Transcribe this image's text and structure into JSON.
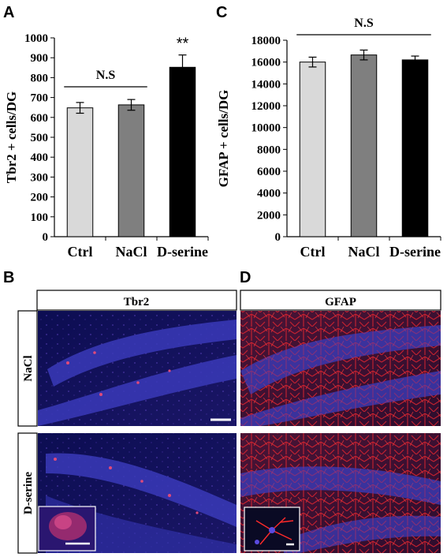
{
  "panels": {
    "a": {
      "letter": "A"
    },
    "b": {
      "letter": "B",
      "header": "Tbr2",
      "rows": [
        "NaCl",
        "D-serine"
      ]
    },
    "c": {
      "letter": "C"
    },
    "d": {
      "letter": "D",
      "header": "GFAP"
    }
  },
  "chart_data": [
    {
      "type": "bar",
      "panel": "A",
      "categories": [
        "Ctrl",
        "NaCl",
        "D-serine"
      ],
      "values": [
        648,
        663,
        852
      ],
      "errors": [
        27,
        27,
        62
      ],
      "bar_colors": [
        "#d9d9d9",
        "#7f7f7f",
        "#000000"
      ],
      "ylabel": "Tbr2 + cells/DG",
      "xlabel": "",
      "ylim": [
        0,
        1000
      ],
      "yticks": [
        0,
        100,
        200,
        300,
        400,
        500,
        600,
        700,
        800,
        900,
        1000
      ],
      "significance": {
        "bracket_label": "N.S",
        "bracket_categories": [
          "Ctrl",
          "NaCl"
        ],
        "bar_label": "**",
        "bar_label_category": "D-serine"
      },
      "grid": false,
      "legend": "none"
    },
    {
      "type": "bar",
      "panel": "C",
      "categories": [
        "Ctrl",
        "NaCl",
        "D-serine"
      ],
      "values": [
        16000,
        16650,
        16200
      ],
      "errors": [
        450,
        450,
        350
      ],
      "bar_colors": [
        "#d9d9d9",
        "#7f7f7f",
        "#000000"
      ],
      "ylabel": "GFAP + cells/DG",
      "xlabel": "",
      "ylim": [
        0,
        18000
      ],
      "yticks": [
        0,
        2000,
        4000,
        6000,
        8000,
        10000,
        12000,
        14000,
        16000,
        18000
      ],
      "significance": {
        "bracket_label": "N.S",
        "bracket_categories": [
          "Ctrl",
          "D-serine"
        ]
      },
      "grid": false,
      "legend": "none"
    }
  ]
}
